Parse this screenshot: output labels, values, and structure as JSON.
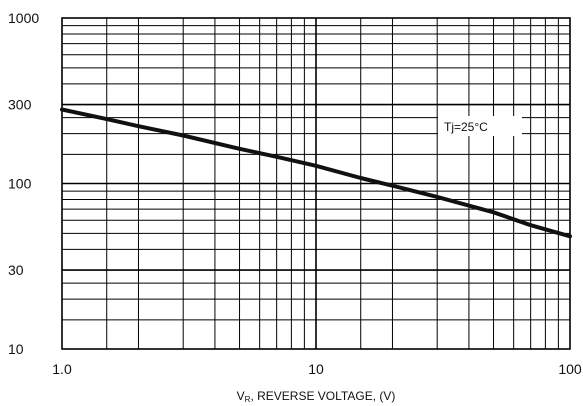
{
  "chart_data": {
    "type": "line",
    "title": "",
    "xlabel": "Vₕ, REVERSE  VOLTAGE, (V)",
    "xlabel_parts": {
      "prefix": "V",
      "subscript": "R",
      "rest": ", REVERSE  VOLTAGE, (V)"
    },
    "ylabel": "",
    "xscale": "log",
    "yscale": "log",
    "xlim": [
      1,
      100
    ],
    "ylim": [
      10,
      1000
    ],
    "grid": true,
    "x_tick_labels": [
      "1.0",
      "10",
      "100"
    ],
    "x_tick_values": [
      1,
      10,
      100
    ],
    "y_tick_labels": [
      "1000",
      "300",
      "100",
      "30",
      "10"
    ],
    "y_tick_values": [
      1000,
      300,
      100,
      30,
      10
    ],
    "annotation": {
      "text": "Tj=25°C",
      "x": 40,
      "y": 195
    },
    "series": [
      {
        "x": [
          1,
          1.5,
          2,
          3,
          5,
          7,
          10,
          15,
          20,
          30,
          50,
          70,
          100
        ],
        "y": [
          280,
          245,
          222,
          195,
          162,
          145,
          128,
          108,
          97,
          83,
          67,
          56,
          48
        ]
      }
    ]
  }
}
